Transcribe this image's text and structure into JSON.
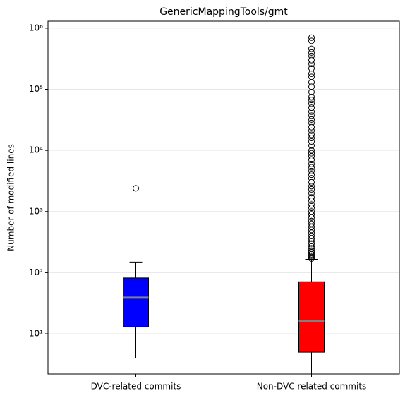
{
  "chart_data": {
    "type": "box",
    "title": "GenericMappingTools/gmt",
    "ylabel": "Number of modified lines",
    "categories": [
      "DVC-related commits",
      "Non-DVC related commits"
    ],
    "yscale": "log",
    "grid": true,
    "ylim": [
      2.2,
      1300000
    ],
    "yticks": [
      {
        "value": 10,
        "label": "10¹"
      },
      {
        "value": 100,
        "label": "10²"
      },
      {
        "value": 1000,
        "label": "10³"
      },
      {
        "value": 10000,
        "label": "10⁴"
      },
      {
        "value": 100000,
        "label": "10⁵"
      },
      {
        "value": 1000000,
        "label": "10⁶"
      }
    ],
    "median_color": "#808080",
    "boxes": [
      {
        "color": "#0000ff",
        "whislo": 4,
        "q1": 13,
        "med": 39,
        "q3": 82,
        "whishi": 149,
        "fliers": [
          2400
        ]
      },
      {
        "color": "#ff0000",
        "whislo": 1,
        "q1": 5,
        "med": 16,
        "q3": 71,
        "whishi": 165,
        "fliers": [
          170,
          180,
          190,
          200,
          215,
          230,
          250,
          270,
          300,
          330,
          360,
          400,
          450,
          500,
          560,
          630,
          700,
          800,
          900,
          1000,
          1150,
          1300,
          1500,
          1700,
          2000,
          2300,
          2600,
          3000,
          3500,
          4000,
          4600,
          5300,
          6000,
          7000,
          8000,
          9000,
          10000,
          12000,
          14000,
          16000,
          18000,
          21000,
          24000,
          28000,
          32000,
          37000,
          43000,
          50000,
          58000,
          67000,
          75000,
          90000,
          110000,
          130000,
          160000,
          180000,
          220000,
          260000,
          300000,
          350000,
          400000,
          460000,
          620000,
          700000
        ]
      }
    ]
  }
}
